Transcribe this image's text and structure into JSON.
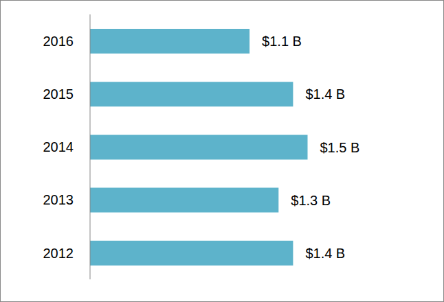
{
  "chart_data": {
    "type": "bar",
    "orientation": "horizontal",
    "categories": [
      "2016",
      "2015",
      "2014",
      "2013",
      "2012"
    ],
    "values": [
      1.1,
      1.4,
      1.5,
      1.3,
      1.4
    ],
    "value_labels": [
      "$1.1 B",
      "$1.4 B",
      "$1.5 B",
      "$1.3 B",
      "$1.4 B"
    ],
    "data_labels": true,
    "color": "#5db3cb",
    "xlim": [
      0,
      2
    ],
    "tick_labels": "y",
    "grid": false
  }
}
